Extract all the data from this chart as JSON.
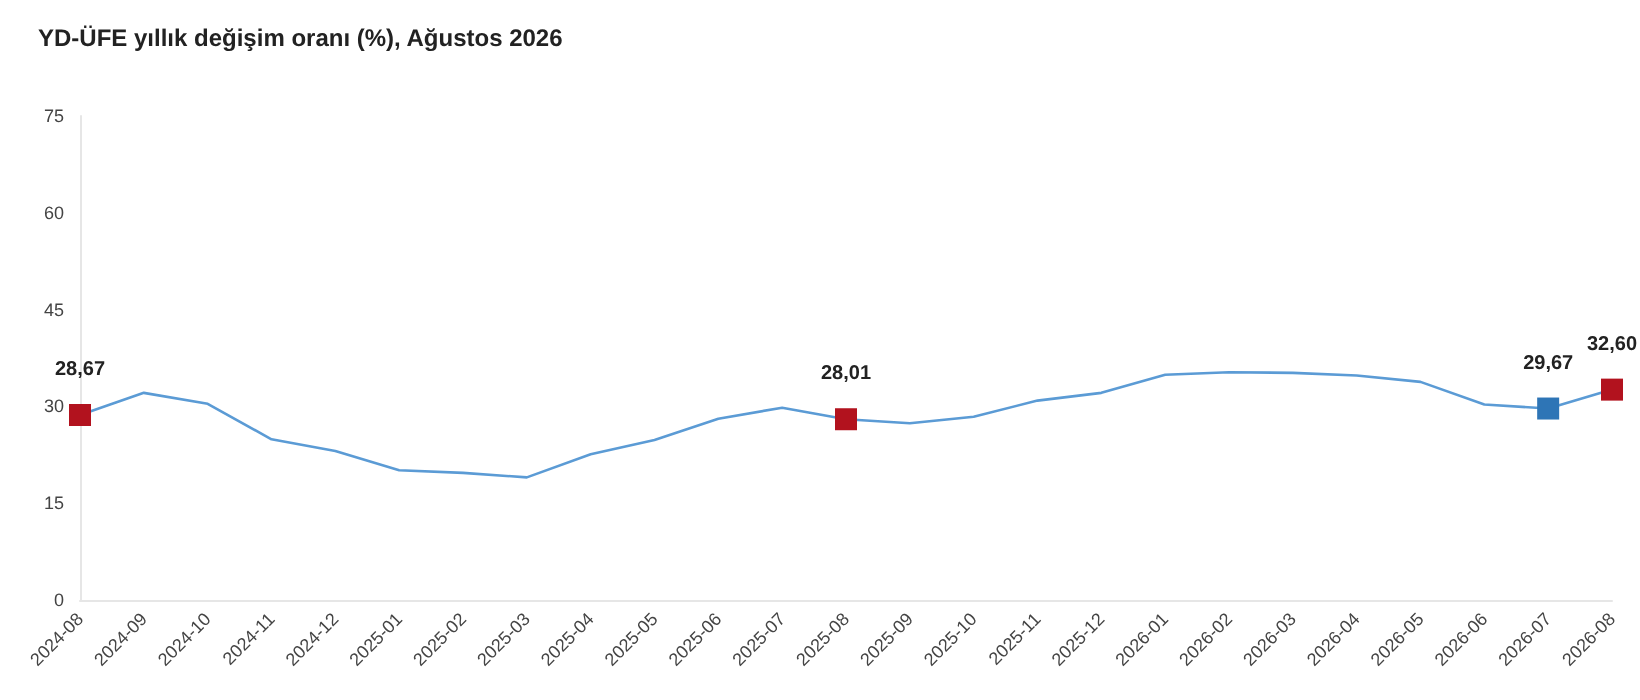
{
  "chart_data": {
    "type": "line",
    "title": "YD-ÜFE yıllık değişim oranı (%), Ağustos 2026",
    "categories": [
      "2024-08",
      "2024-09",
      "2024-10",
      "2024-11",
      "2024-12",
      "2025-01",
      "2025-02",
      "2025-03",
      "2025-04",
      "2025-05",
      "2025-06",
      "2025-07",
      "2025-08",
      "2025-09",
      "2025-10",
      "2025-11",
      "2025-12",
      "2026-01",
      "2026-02",
      "2026-03",
      "2026-04",
      "2026-05",
      "2026-06",
      "2026-07",
      "2026-08"
    ],
    "series": [
      {
        "color": "#5b9bd5",
        "values": [
          28.67,
          32.1,
          30.4,
          24.9,
          23.1,
          20.1,
          19.7,
          19.0,
          22.6,
          24.8,
          28.1,
          29.8,
          28.01,
          27.4,
          28.4,
          30.9,
          32.1,
          34.9,
          35.3,
          35.2,
          34.8,
          33.8,
          30.3,
          29.67,
          32.6
        ],
        "value_labels": [
          "28,67",
          null,
          null,
          null,
          null,
          null,
          null,
          null,
          null,
          null,
          null,
          null,
          "28,01",
          null,
          null,
          null,
          null,
          null,
          null,
          null,
          null,
          null,
          null,
          "29,67",
          "32,60"
        ],
        "colors": [
          "#b2121e",
          "#5b9bd5",
          "#5b9bd5",
          "#5b9bd5",
          "#5b9bd5",
          "#5b9bd5",
          "#5b9bd5",
          "#5b9bd5",
          "#5b9bd5",
          "#5b9bd5",
          "#5b9bd5",
          "#5b9bd5",
          "#b2121e",
          "#5b9bd5",
          "#5b9bd5",
          "#5b9bd5",
          "#5b9bd5",
          "#5b9bd5",
          "#5b9bd5",
          "#5b9bd5",
          "#5b9bd5",
          "#5b9bd5",
          "#5b9bd5",
          "#2e75b6",
          "#b2121e"
        ]
      }
    ],
    "ylim": [
      0,
      75
    ],
    "yticks": [
      0,
      15,
      30,
      45,
      60,
      75
    ],
    "grid": false,
    "line_style": "solid"
  }
}
